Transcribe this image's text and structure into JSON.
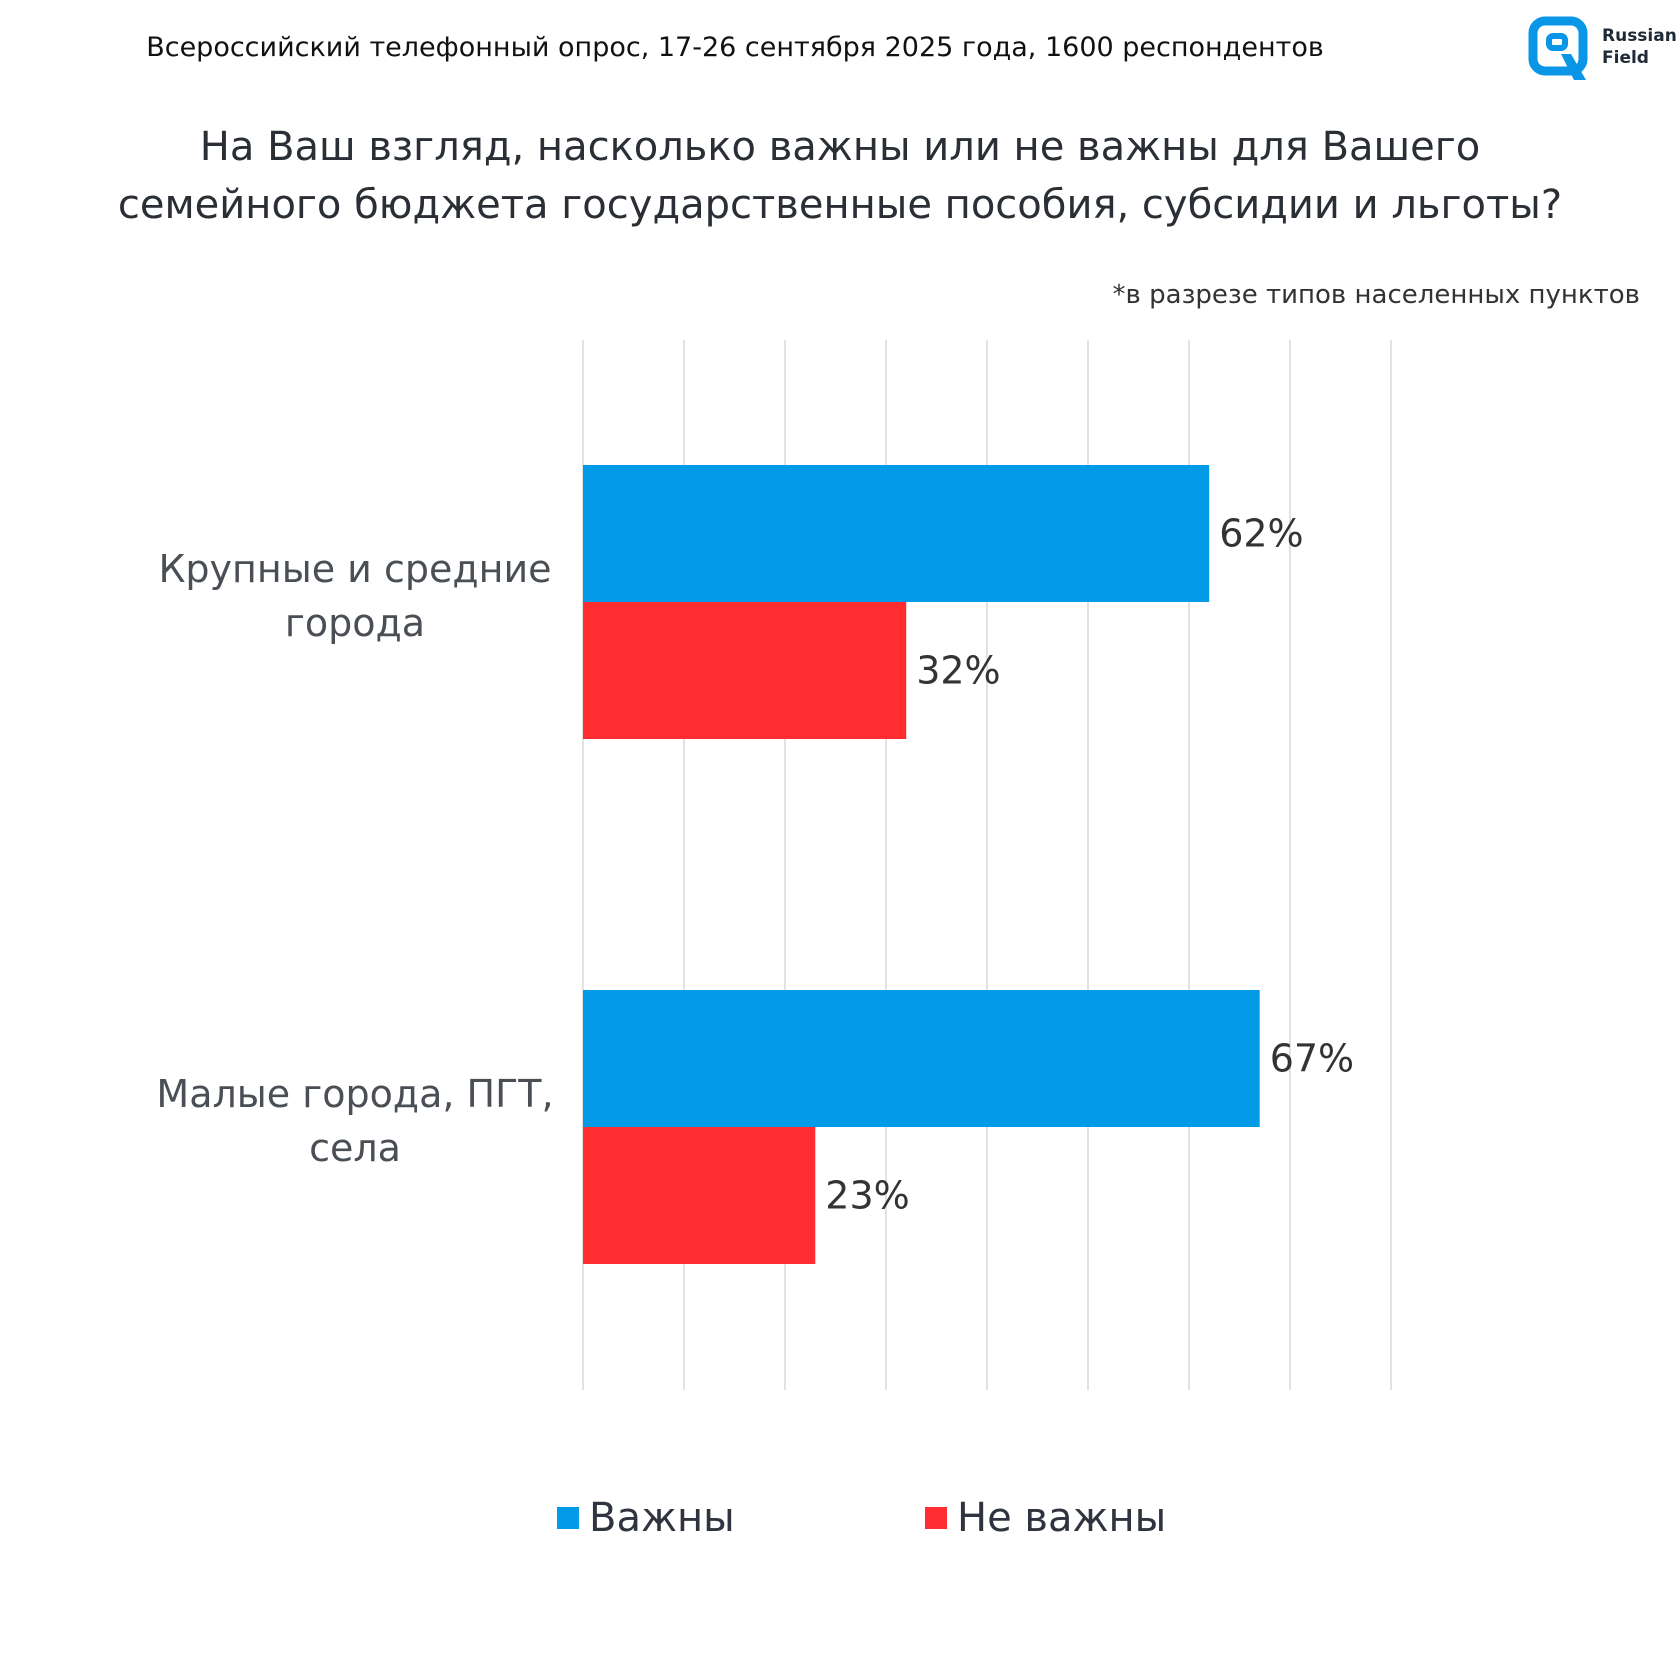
{
  "header": {
    "survey_info": "Всероссийский телефонный опрос, 17-26 сентября 2025 года, 1600 респондентов",
    "logo_line1": "Russian",
    "logo_line2": "Field"
  },
  "question_lines": [
    "На Ваш взгляд, насколько важны или не важны для Вашего",
    "семейного бюджета государственные пособия, субсидии и льготы?"
  ],
  "note": "*в разрезе типов населенных пунктов",
  "colors": {
    "important": "#039BE8",
    "not_important": "#FF2D2F",
    "grid": "#D9D9D9",
    "logo": "#0A96E6"
  },
  "chart_data": {
    "type": "bar",
    "orientation": "horizontal",
    "categories": [
      [
        "Крупные и средние",
        "города"
      ],
      [
        "Малые города, ПГТ,",
        "села"
      ]
    ],
    "series": [
      {
        "name": "Важны",
        "values": [
          62,
          67
        ],
        "labels": [
          "62%",
          "67%"
        ]
      },
      {
        "name": "Не важны",
        "values": [
          32,
          23
        ],
        "labels": [
          "32%",
          "23%"
        ]
      }
    ],
    "xlim": [
      0,
      80
    ],
    "grid": true,
    "legend_position": "bottom"
  }
}
